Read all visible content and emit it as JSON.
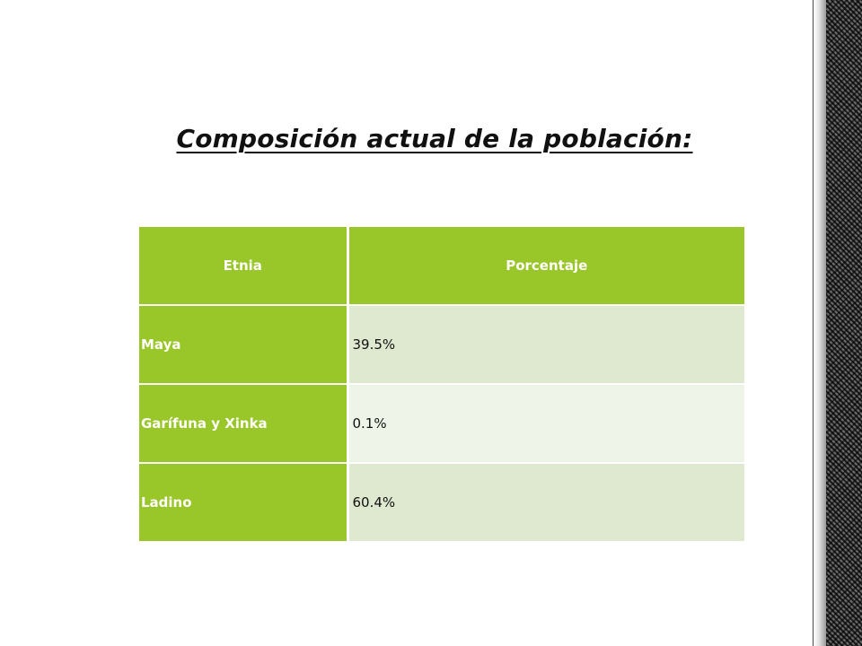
{
  "slide": {
    "title": "Composición actual de la población:"
  },
  "table": {
    "headers": [
      "Etnia",
      "Porcentaje"
    ],
    "rows": [
      {
        "etnia": "Maya",
        "porcentaje": "39.5%"
      },
      {
        "etnia": "Garífuna y Xinka",
        "porcentaje": "0.1%"
      },
      {
        "etnia": "Ladino",
        "porcentaje": "60.4%"
      }
    ]
  },
  "colors": {
    "header_green": "#99c628",
    "row_light": "#dfe9cf",
    "row_lighter": "#eef4e8"
  }
}
